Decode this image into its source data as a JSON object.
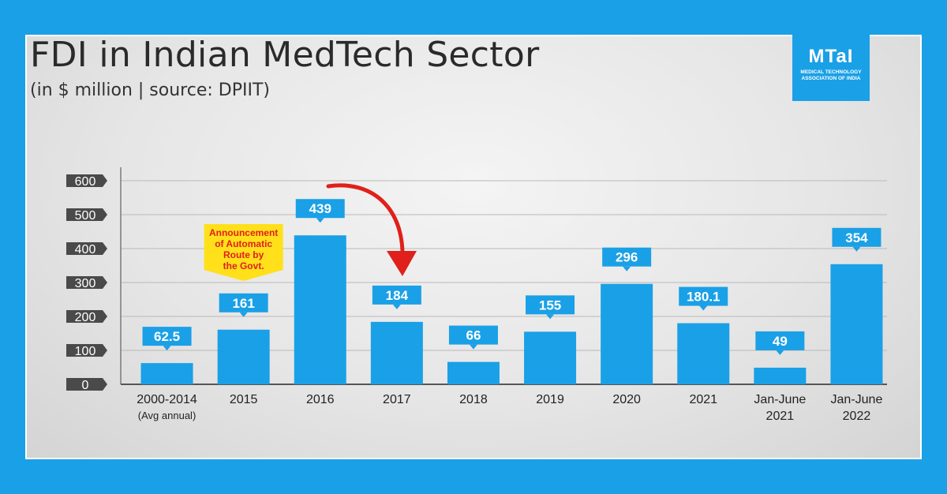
{
  "header": {
    "title": "FDI in Indian MedTech Sector",
    "subtitle": "(in $ million  |  source: DPIIT)"
  },
  "logo": {
    "mark": "MTaI",
    "tagline": "Medical Technology Association of India"
  },
  "annotation": {
    "lines": [
      "Announcement",
      "of Automatic",
      "Route by",
      "the Govt."
    ],
    "category": "2015"
  },
  "chart_data": {
    "type": "bar",
    "categories": [
      "2000-2014",
      "2015",
      "2016",
      "2017",
      "2018",
      "2019",
      "2020",
      "2021",
      "Jan-June 2021",
      "Jan-June 2022"
    ],
    "category_sublabels": [
      "(Avg annual)",
      "",
      "",
      "",
      "",
      "",
      "",
      "",
      "",
      ""
    ],
    "values": [
      62.5,
      161,
      439,
      184,
      66,
      155,
      296,
      180.1,
      49,
      354
    ],
    "value_labels": [
      "62.5",
      "161",
      "439",
      "184",
      "66",
      "155",
      "296",
      "180.1",
      "49",
      "354"
    ],
    "yticks": [
      0,
      100,
      200,
      300,
      400,
      500,
      600
    ],
    "ylim": [
      0,
      600
    ],
    "grid": true,
    "colors": {
      "bar": "#1aa0e6",
      "label_bg": "#1aa0e6",
      "tick_bg": "#4a4a4a",
      "annotation_bg": "#ffe01a",
      "annotation_text": "#e0201a",
      "arrow": "#e0201a"
    }
  }
}
